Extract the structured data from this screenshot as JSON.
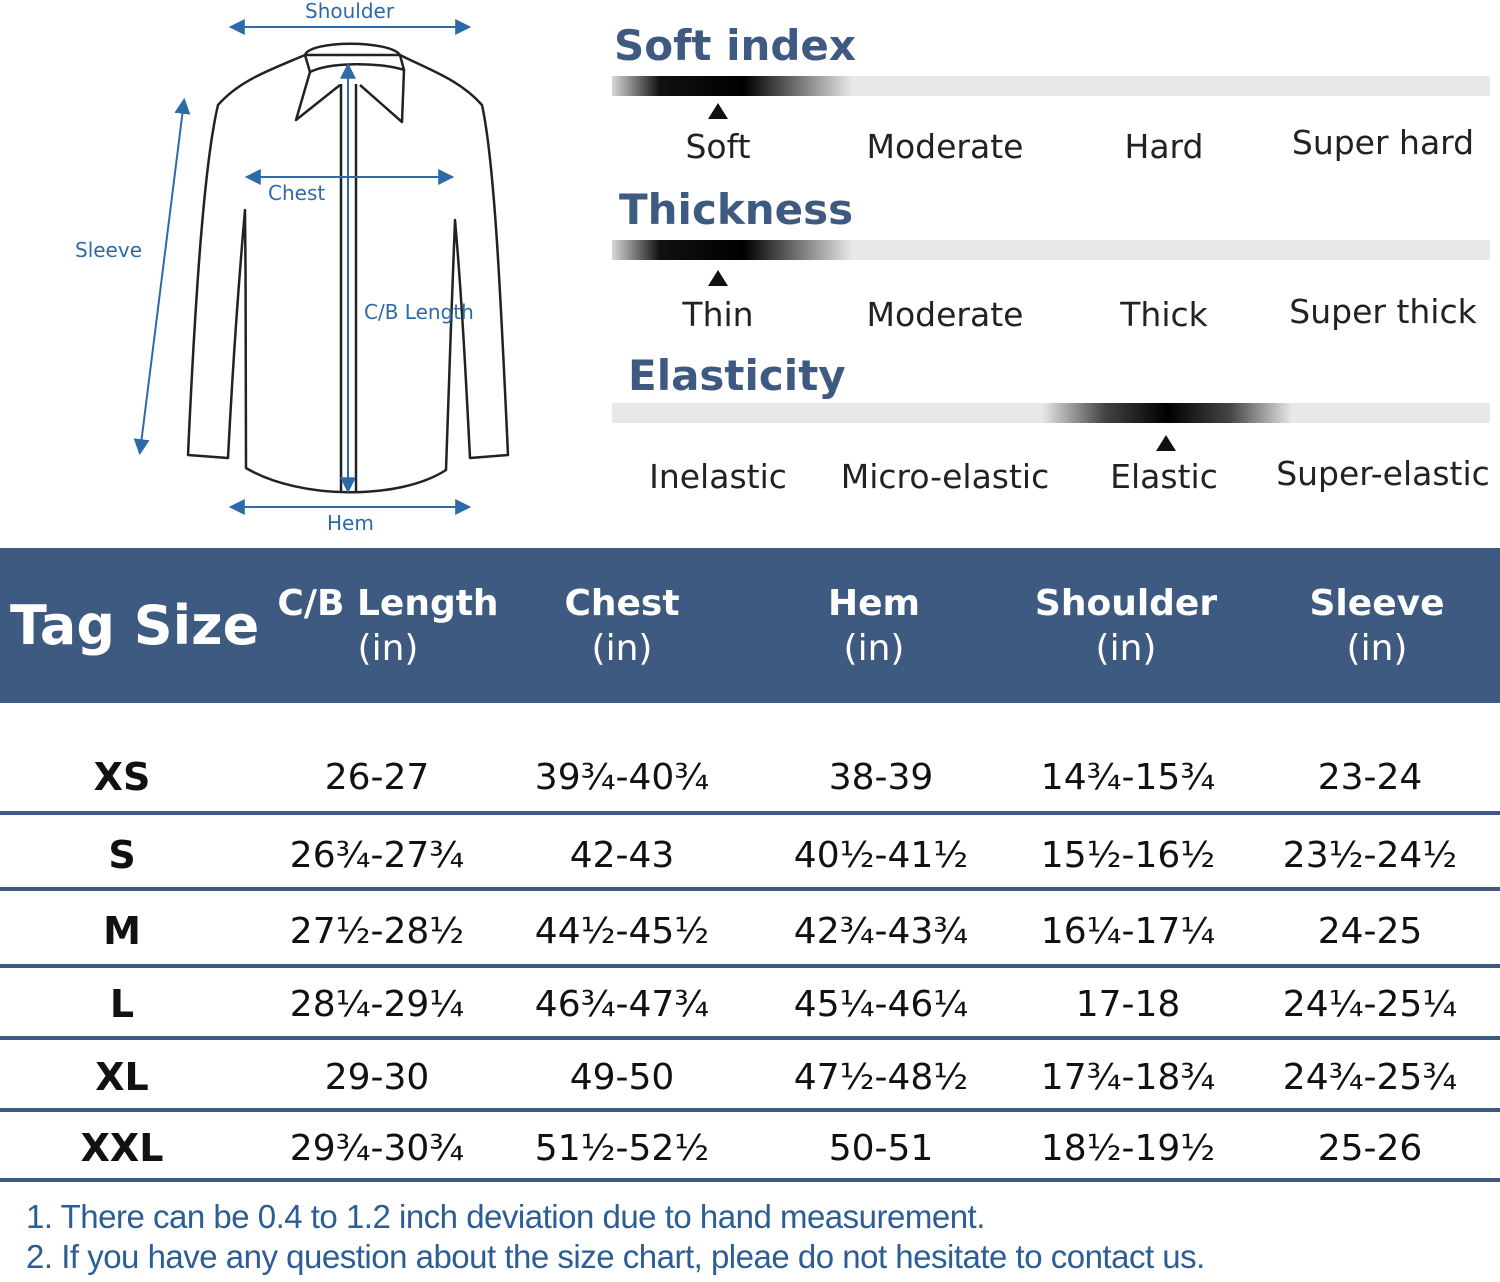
{
  "diagram": {
    "labels": {
      "shoulder": "Shoulder",
      "chest": "Chest",
      "sleeve": "Sleeve",
      "cb_length": "C/B Length",
      "hem": "Hem"
    }
  },
  "indices": [
    {
      "title": "Soft index",
      "levels": [
        "Soft",
        "Moderate",
        "Hard",
        "Super hard"
      ],
      "selected": "Soft"
    },
    {
      "title": "Thickness",
      "levels": [
        "Thin",
        "Moderate",
        "Thick",
        "Super thick"
      ],
      "selected": "Thin"
    },
    {
      "title": "Elasticity",
      "levels": [
        "Inelastic",
        "Micro-elastic",
        "Elastic",
        "Super-elastic"
      ],
      "selected": "Elastic"
    }
  ],
  "table": {
    "tag_size_header": "Tag Size",
    "columns": [
      {
        "name": "C/B Length",
        "unit": "(in)"
      },
      {
        "name": "Chest",
        "unit": "(in)"
      },
      {
        "name": "Hem",
        "unit": "(in)"
      },
      {
        "name": "Shoulder",
        "unit": "(in)"
      },
      {
        "name": "Sleeve",
        "unit": "(in)"
      }
    ],
    "rows": [
      {
        "size": "XS",
        "values": [
          "26-27",
          "39¾-40¾",
          "38-39",
          "14¾-15¾",
          "23-24"
        ]
      },
      {
        "size": "S",
        "values": [
          "26¾-27¾",
          "42-43",
          "40½-41½",
          "15½-16½",
          "23½-24½"
        ]
      },
      {
        "size": "M",
        "values": [
          "27½-28½",
          "44½-45½",
          "42¾-43¾",
          "16¼-17¼",
          "24-25"
        ]
      },
      {
        "size": "L",
        "values": [
          "28¼-29¼",
          "46¾-47¾",
          "45¼-46¼",
          "17-18",
          "24¼-25¼"
        ]
      },
      {
        "size": "XL",
        "values": [
          "29-30",
          "49-50",
          "47½-48½",
          "17¾-18¾",
          "24¾-25¾"
        ]
      },
      {
        "size": "XXL",
        "values": [
          "29¾-30¾",
          "51½-52½",
          "50-51",
          "18½-19½",
          "25-26"
        ]
      }
    ]
  },
  "notes": [
    "1. There can be 0.4 to 1.2 inch deviation due to hand measurement.",
    "2. If you have any question about the size chart, pleae do not hesitate to contact us."
  ],
  "colors": {
    "header_bg": "#3e5a80",
    "measure_blue": "#2f6aa8",
    "note_blue": "#2c5d96"
  }
}
